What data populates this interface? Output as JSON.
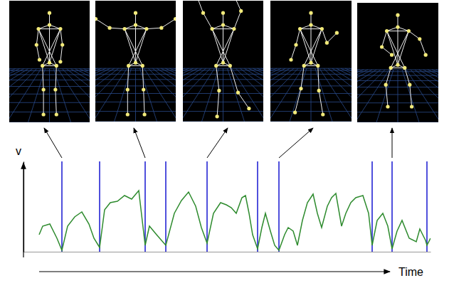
{
  "chart_data": {
    "type": "line",
    "x_label": "Time",
    "y_label": "v",
    "xlim": [
      33,
      605
    ],
    "ylim": [
      0,
      127
    ],
    "tick_labels": false,
    "grid": false,
    "x": [
      55,
      60,
      70,
      80,
      87,
      95,
      105,
      115,
      125,
      132,
      140,
      147,
      155,
      165,
      175,
      185,
      195,
      204,
      210,
      220,
      233,
      245,
      255,
      265,
      275,
      283,
      291,
      300,
      310,
      318,
      325,
      332,
      340,
      345,
      350,
      355,
      362,
      368,
      373,
      380,
      386,
      392,
      400,
      405,
      412,
      418,
      425,
      432,
      440,
      446,
      452,
      460,
      466,
      472,
      480,
      486,
      493,
      500,
      510,
      518,
      523,
      530,
      538,
      545,
      551,
      558,
      565,
      575,
      585,
      590,
      598,
      600,
      605
    ],
    "series": [
      {
        "color": "#2e8b2e",
        "values": [
          24,
          36,
          39,
          19,
          2,
          36,
          49,
          56,
          39,
          19,
          6,
          59,
          69,
          71,
          79,
          74,
          86,
          9,
          36,
          24,
          9,
          54,
          72,
          84,
          64,
          34,
          12,
          54,
          69,
          66,
          62,
          54,
          76,
          79,
          54,
          24,
          4,
          34,
          54,
          29,
          9,
          2,
          24,
          34,
          29,
          9,
          44,
          69,
          81,
          54,
          34,
          64,
          76,
          82,
          36,
          54,
          69,
          76,
          79,
          54,
          9,
          44,
          54,
          36,
          4,
          29,
          44,
          19,
          14,
          32,
          16,
          9,
          19
        ]
      }
    ],
    "segments": {
      "color": "#2424d4",
      "x": [
        87,
        140,
        204,
        233,
        291,
        362,
        392,
        523,
        551,
        600
      ]
    }
  }
}
